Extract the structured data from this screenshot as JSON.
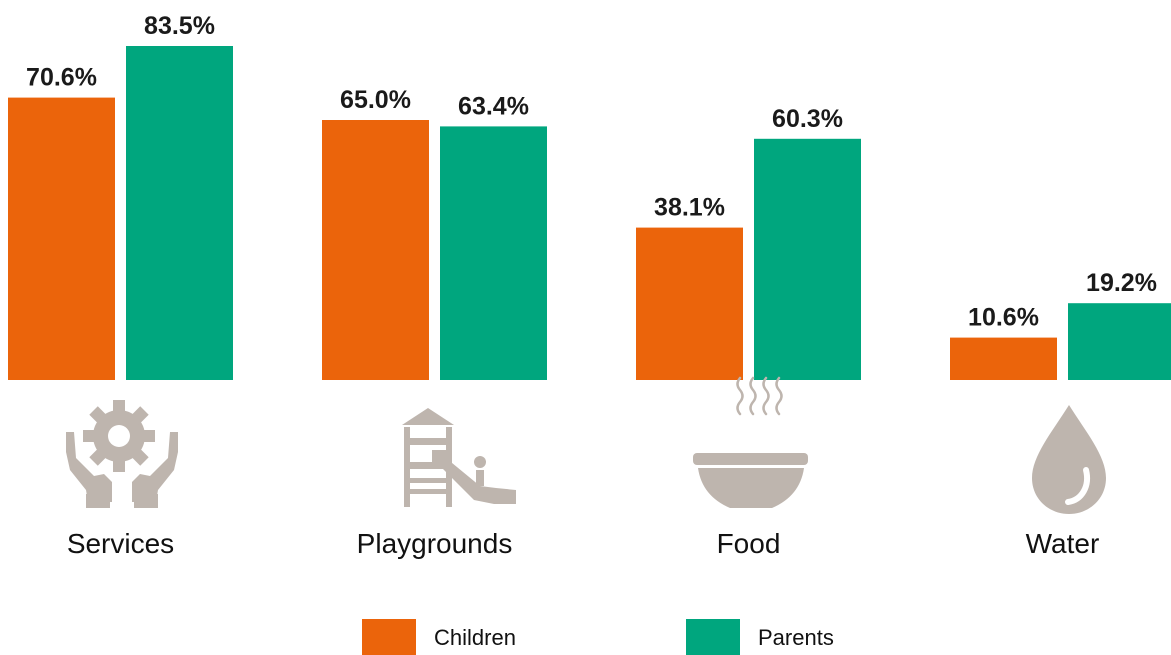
{
  "chart_data": {
    "type": "bar",
    "categories": [
      "Services",
      "Playgrounds",
      "Food",
      "Water"
    ],
    "category_icons": [
      "hands-gear-icon",
      "playground-slide-icon",
      "soup-bowl-icon",
      "water-drop-icon"
    ],
    "series": [
      {
        "name": "Children",
        "color": "#EB640B",
        "values": [
          70.6,
          65.0,
          38.1,
          10.6
        ],
        "labels": [
          "70.6%",
          "65.0%",
          "38.1%",
          "10.6%"
        ]
      },
      {
        "name": "Parents",
        "color": "#00A67E",
        "values": [
          83.5,
          63.4,
          60.3,
          19.2
        ],
        "labels": [
          "83.5%",
          "63.4%",
          "60.3%",
          "19.2%"
        ]
      }
    ],
    "value_format": "percent",
    "ylim": [
      0,
      100
    ],
    "grid": false,
    "legend_position": "bottom-center",
    "icon_color": "#BEB5AE"
  }
}
